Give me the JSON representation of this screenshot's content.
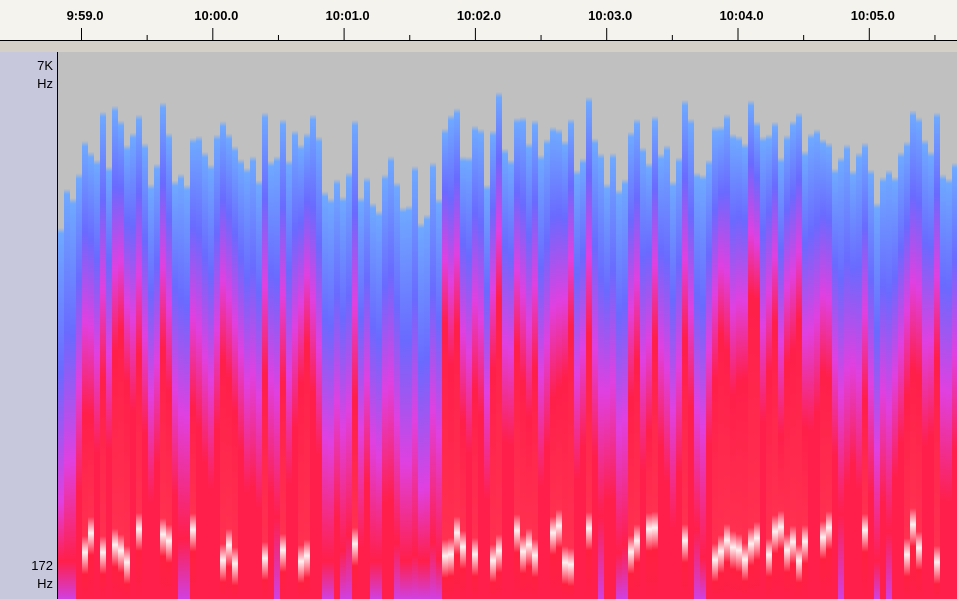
{
  "ruler": {
    "labels": [
      "9:59.0",
      "10:00.0",
      "10:01.0",
      "10:02.0",
      "10:03.0",
      "10:04.0",
      "10:05.0"
    ]
  },
  "frequency_axis": {
    "top": {
      "value": "7K",
      "unit": "Hz"
    },
    "bottom": {
      "value": "172",
      "unit": "Hz"
    }
  }
}
